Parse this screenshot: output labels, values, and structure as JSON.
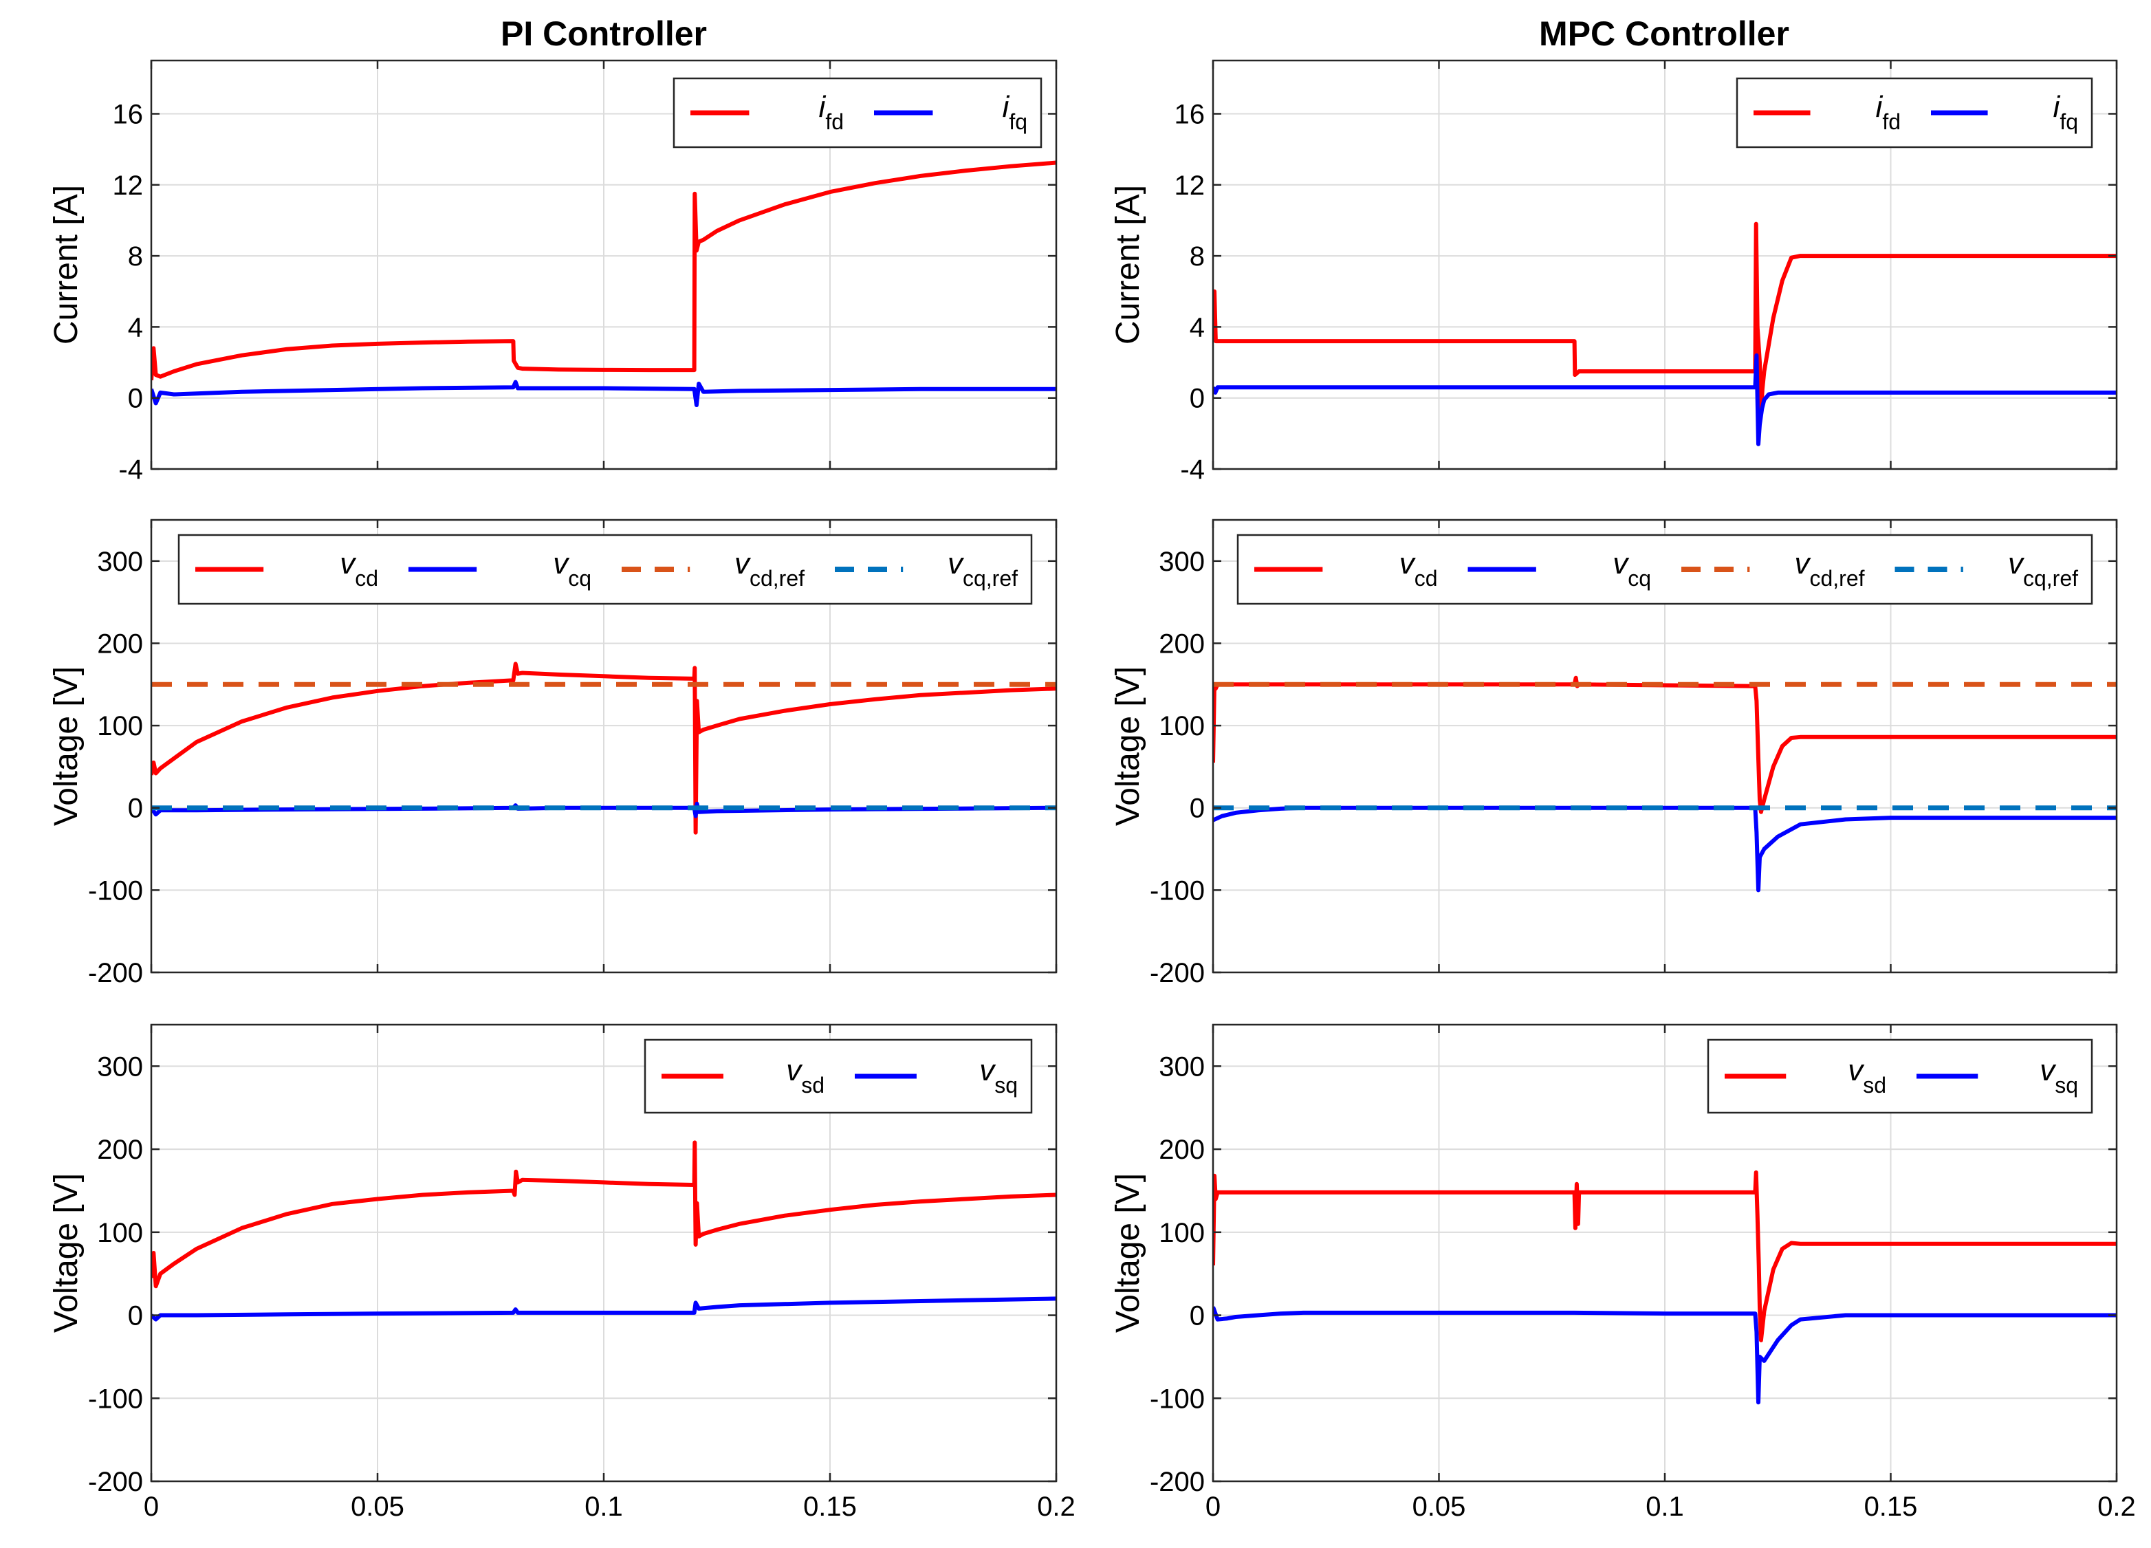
{
  "figure": {
    "column_titles": [
      "PI Controller",
      "MPC Controller"
    ]
  },
  "chart_data": [
    {
      "id": "pi_current",
      "type": "line",
      "title": "PI Controller",
      "ylabel": "Current [A]",
      "xlim": [
        0,
        0.2
      ],
      "ylim": [
        -4,
        19
      ],
      "yticks": [
        -4,
        0,
        4,
        8,
        12,
        16
      ],
      "yticklabels": [
        "-4",
        "0",
        "4",
        "8",
        "12",
        "16"
      ],
      "xticks": [
        0,
        0.05,
        0.1,
        0.15,
        0.2
      ],
      "xticklabels": [],
      "grid": true,
      "legend_loc": "top-right",
      "series": [
        {
          "name": "i_fd",
          "label_main": "i",
          "label_sub": "fd",
          "color": "#ff0000",
          "dash": false,
          "x": [
            0,
            0.0005,
            0.001,
            0.002,
            0.005,
            0.01,
            0.02,
            0.03,
            0.04,
            0.05,
            0.06,
            0.07,
            0.08,
            0.0801,
            0.081,
            0.082,
            0.09,
            0.1,
            0.11,
            0.12,
            0.1201,
            0.1205,
            0.121,
            0.122,
            0.125,
            0.13,
            0.14,
            0.15,
            0.16,
            0.17,
            0.18,
            0.19,
            0.2
          ],
          "y": [
            1.0,
            2.8,
            1.3,
            1.2,
            1.5,
            1.9,
            2.4,
            2.75,
            2.95,
            3.05,
            3.12,
            3.17,
            3.2,
            2.1,
            1.7,
            1.65,
            1.6,
            1.58,
            1.57,
            1.57,
            11.5,
            8.3,
            8.8,
            8.9,
            9.4,
            10.0,
            10.9,
            11.6,
            12.1,
            12.5,
            12.8,
            13.05,
            13.25
          ]
        },
        {
          "name": "i_fq",
          "label_main": "i",
          "label_sub": "fq",
          "color": "#0000ff",
          "dash": false,
          "x": [
            0,
            0.001,
            0.002,
            0.005,
            0.01,
            0.02,
            0.04,
            0.06,
            0.08,
            0.0805,
            0.081,
            0.09,
            0.1,
            0.12,
            0.1205,
            0.121,
            0.122,
            0.13,
            0.15,
            0.17,
            0.2
          ],
          "y": [
            0.5,
            -0.3,
            0.3,
            0.2,
            0.25,
            0.35,
            0.45,
            0.55,
            0.6,
            0.9,
            0.55,
            0.55,
            0.55,
            0.5,
            -0.4,
            0.8,
            0.35,
            0.4,
            0.45,
            0.5,
            0.5
          ]
        }
      ]
    },
    {
      "id": "mpc_current",
      "type": "line",
      "title": "MPC Controller",
      "ylabel": "Current [A]",
      "xlim": [
        0,
        0.2
      ],
      "ylim": [
        -4,
        19
      ],
      "yticks": [
        -4,
        0,
        4,
        8,
        12,
        16
      ],
      "yticklabels": [
        "-4",
        "0",
        "4",
        "8",
        "12",
        "16"
      ],
      "xticks": [
        0,
        0.05,
        0.1,
        0.15,
        0.2
      ],
      "xticklabels": [],
      "grid": true,
      "legend_loc": "top-right",
      "series": [
        {
          "name": "i_fd",
          "label_main": "i",
          "label_sub": "fd",
          "color": "#ff0000",
          "dash": false,
          "x": [
            0,
            0.0003,
            0.0006,
            0.001,
            0.08,
            0.0801,
            0.081,
            0.09,
            0.12,
            0.1202,
            0.1205,
            0.121,
            0.1213,
            0.1216,
            0.122,
            0.124,
            0.126,
            0.128,
            0.13,
            0.15,
            0.2
          ],
          "y": [
            3.2,
            6.0,
            3.2,
            3.2,
            3.2,
            1.3,
            1.5,
            1.5,
            1.5,
            9.8,
            4.0,
            2.0,
            -0.8,
            0.5,
            1.5,
            4.5,
            6.6,
            7.9,
            8.0,
            8.0,
            8.0
          ]
        },
        {
          "name": "i_fq",
          "label_main": "i",
          "label_sub": "fq",
          "color": "#0000ff",
          "dash": false,
          "x": [
            0,
            0.0005,
            0.001,
            0.08,
            0.09,
            0.12,
            0.1203,
            0.1207,
            0.121,
            0.1215,
            0.122,
            0.123,
            0.125,
            0.13,
            0.2
          ],
          "y": [
            0.6,
            0.3,
            0.6,
            0.6,
            0.6,
            0.6,
            2.4,
            -2.6,
            -1.5,
            -0.6,
            -0.1,
            0.2,
            0.3,
            0.3,
            0.3
          ]
        }
      ]
    },
    {
      "id": "pi_vc",
      "type": "line",
      "ylabel": "Voltage [V]",
      "xlim": [
        0,
        0.2
      ],
      "ylim": [
        -200,
        350
      ],
      "yticks": [
        -200,
        -100,
        0,
        100,
        200,
        300
      ],
      "yticklabels": [
        "-200",
        "-100",
        "0",
        "100",
        "200",
        "300"
      ],
      "xticks": [
        0,
        0.05,
        0.1,
        0.15,
        0.2
      ],
      "xticklabels": [],
      "grid": true,
      "legend_loc": "top",
      "series": [
        {
          "name": "v_cd",
          "label_main": "v",
          "label_sub": "cd",
          "color": "#ff0000",
          "dash": false,
          "x": [
            0,
            0.0005,
            0.001,
            0.002,
            0.005,
            0.01,
            0.02,
            0.03,
            0.04,
            0.05,
            0.06,
            0.07,
            0.08,
            0.0805,
            0.081,
            0.082,
            0.09,
            0.1,
            0.11,
            0.12,
            0.1201,
            0.1203,
            0.1206,
            0.121,
            0.122,
            0.125,
            0.13,
            0.14,
            0.15,
            0.16,
            0.17,
            0.18,
            0.19,
            0.2
          ],
          "y": [
            40,
            55,
            42,
            48,
            60,
            80,
            105,
            122,
            134,
            142,
            148,
            152,
            155,
            175,
            163,
            164,
            162,
            160,
            158,
            157,
            170,
            -30,
            130,
            92,
            95,
            100,
            108,
            118,
            126,
            132,
            137,
            140,
            143,
            145
          ]
        },
        {
          "name": "v_cq",
          "label_main": "v",
          "label_sub": "cq",
          "color": "#0000ff",
          "dash": false,
          "x": [
            0,
            0.001,
            0.002,
            0.01,
            0.03,
            0.06,
            0.08,
            0.0805,
            0.081,
            0.09,
            0.12,
            0.1203,
            0.1206,
            0.121,
            0.125,
            0.15,
            0.2
          ],
          "y": [
            0,
            -8,
            -3,
            -3,
            -2,
            -1,
            0,
            3,
            -1,
            0,
            0,
            -10,
            5,
            -5,
            -4,
            -2,
            0
          ]
        },
        {
          "name": "v_cd,ref",
          "label_main": "v",
          "label_sub": "cd,ref",
          "color": "#d95319",
          "dash": true,
          "x": [
            0,
            0.2
          ],
          "y": [
            150,
            150
          ]
        },
        {
          "name": "v_cq,ref",
          "label_main": "v",
          "label_sub": "cq,ref",
          "color": "#0072bd",
          "dash": true,
          "x": [
            0,
            0.2
          ],
          "y": [
            0,
            0
          ]
        }
      ]
    },
    {
      "id": "mpc_vc",
      "type": "line",
      "ylabel": "Voltage [V]",
      "xlim": [
        0,
        0.2
      ],
      "ylim": [
        -200,
        350
      ],
      "yticks": [
        -200,
        -100,
        0,
        100,
        200,
        300
      ],
      "yticklabels": [
        "-200",
        "-100",
        "0",
        "100",
        "200",
        "300"
      ],
      "xticks": [
        0,
        0.05,
        0.1,
        0.15,
        0.2
      ],
      "xticklabels": [],
      "grid": true,
      "legend_loc": "top",
      "series": [
        {
          "name": "v_cd",
          "label_main": "v",
          "label_sub": "cd",
          "color": "#ff0000",
          "dash": false,
          "x": [
            0,
            0.0003,
            0.0006,
            0.001,
            0.08,
            0.0803,
            0.0806,
            0.081,
            0.12,
            0.1203,
            0.1207,
            0.121,
            0.1213,
            0.122,
            0.124,
            0.126,
            0.128,
            0.13,
            0.2
          ],
          "y": [
            55,
            150,
            145,
            150,
            150,
            158,
            148,
            150,
            148,
            130,
            60,
            10,
            -5,
            10,
            50,
            75,
            85,
            86,
            86
          ]
        },
        {
          "name": "v_cq",
          "label_main": "v",
          "label_sub": "cq",
          "color": "#0000ff",
          "dash": false,
          "x": [
            0,
            0.002,
            0.005,
            0.01,
            0.015,
            0.02,
            0.12,
            0.1203,
            0.1207,
            0.121,
            0.122,
            0.125,
            0.13,
            0.14,
            0.15,
            0.2
          ],
          "y": [
            -15,
            -10,
            -6,
            -3,
            -1,
            0,
            0,
            -30,
            -100,
            -60,
            -50,
            -35,
            -20,
            -14,
            -12,
            -12
          ]
        },
        {
          "name": "v_cd,ref",
          "label_main": "v",
          "label_sub": "cd,ref",
          "color": "#d95319",
          "dash": true,
          "x": [
            0,
            0.2
          ],
          "y": [
            150,
            150
          ]
        },
        {
          "name": "v_cq,ref",
          "label_main": "v",
          "label_sub": "cq,ref",
          "color": "#0072bd",
          "dash": true,
          "x": [
            0,
            0.2
          ],
          "y": [
            0,
            0
          ]
        }
      ]
    },
    {
      "id": "pi_vs",
      "type": "line",
      "ylabel": "Voltage [V]",
      "xlim": [
        0,
        0.2
      ],
      "ylim": [
        -200,
        350
      ],
      "yticks": [
        -200,
        -100,
        0,
        100,
        200,
        300
      ],
      "yticklabels": [
        "-200",
        "-100",
        "0",
        "100",
        "200",
        "300"
      ],
      "xticks": [
        0,
        0.05,
        0.1,
        0.15,
        0.2
      ],
      "xticklabels": [
        "0",
        "0.05",
        "0.1",
        "0.15",
        "0.2"
      ],
      "grid": true,
      "legend_loc": "top-right",
      "series": [
        {
          "name": "v_sd",
          "label_main": "v",
          "label_sub": "sd",
          "color": "#ff0000",
          "dash": false,
          "x": [
            0,
            0.0005,
            0.001,
            0.002,
            0.005,
            0.01,
            0.02,
            0.03,
            0.04,
            0.05,
            0.06,
            0.07,
            0.08,
            0.0803,
            0.0806,
            0.081,
            0.082,
            0.09,
            0.1,
            0.11,
            0.12,
            0.1201,
            0.1203,
            0.1206,
            0.121,
            0.122,
            0.125,
            0.13,
            0.14,
            0.15,
            0.16,
            0.17,
            0.18,
            0.19,
            0.2
          ],
          "y": [
            45,
            75,
            35,
            50,
            62,
            80,
            105,
            122,
            134,
            140,
            145,
            148,
            150,
            145,
            173,
            160,
            163,
            162,
            160,
            158,
            157,
            208,
            85,
            135,
            95,
            98,
            103,
            110,
            120,
            127,
            133,
            137,
            140,
            143,
            145
          ]
        },
        {
          "name": "v_sq",
          "label_main": "v",
          "label_sub": "sq",
          "color": "#0000ff",
          "dash": false,
          "x": [
            0,
            0.001,
            0.002,
            0.01,
            0.03,
            0.05,
            0.08,
            0.0805,
            0.081,
            0.1,
            0.12,
            0.1203,
            0.121,
            0.125,
            0.13,
            0.15,
            0.17,
            0.2
          ],
          "y": [
            0,
            -5,
            0,
            0,
            1,
            2,
            3,
            7,
            3,
            3,
            3,
            15,
            8,
            10,
            12,
            15,
            17,
            20
          ]
        }
      ]
    },
    {
      "id": "mpc_vs",
      "type": "line",
      "ylabel": "Voltage [V]",
      "xlim": [
        0,
        0.2
      ],
      "ylim": [
        -200,
        350
      ],
      "yticks": [
        -200,
        -100,
        0,
        100,
        200,
        300
      ],
      "yticklabels": [
        "-200",
        "-100",
        "0",
        "100",
        "200",
        "300"
      ],
      "xticks": [
        0,
        0.05,
        0.1,
        0.15,
        0.2
      ],
      "xticklabels": [
        "0",
        "0.05",
        "0.1",
        "0.15",
        "0.2"
      ],
      "grid": true,
      "legend_loc": "top-right",
      "series": [
        {
          "name": "v_sd",
          "label_main": "v",
          "label_sub": "sd",
          "color": "#ff0000",
          "dash": false,
          "x": [
            0,
            0.0003,
            0.0006,
            0.001,
            0.08,
            0.0802,
            0.0805,
            0.0808,
            0.081,
            0.12,
            0.1202,
            0.1205,
            0.1208,
            0.121,
            0.1213,
            0.122,
            0.124,
            0.126,
            0.128,
            0.13,
            0.2
          ],
          "y": [
            60,
            168,
            140,
            148,
            148,
            105,
            158,
            110,
            148,
            148,
            172,
            120,
            60,
            10,
            -30,
            5,
            55,
            80,
            87,
            86,
            86
          ]
        },
        {
          "name": "v_sq",
          "label_main": "v",
          "label_sub": "sq",
          "color": "#0000ff",
          "dash": false,
          "x": [
            0,
            0.001,
            0.003,
            0.005,
            0.01,
            0.015,
            0.02,
            0.08,
            0.1,
            0.12,
            0.1203,
            0.1207,
            0.121,
            0.122,
            0.125,
            0.128,
            0.13,
            0.14,
            0.2
          ],
          "y": [
            10,
            -5,
            -4,
            -2,
            0,
            2,
            3,
            3,
            2,
            2,
            -20,
            -105,
            -50,
            -55,
            -30,
            -12,
            -5,
            0,
            0
          ]
        }
      ]
    }
  ]
}
